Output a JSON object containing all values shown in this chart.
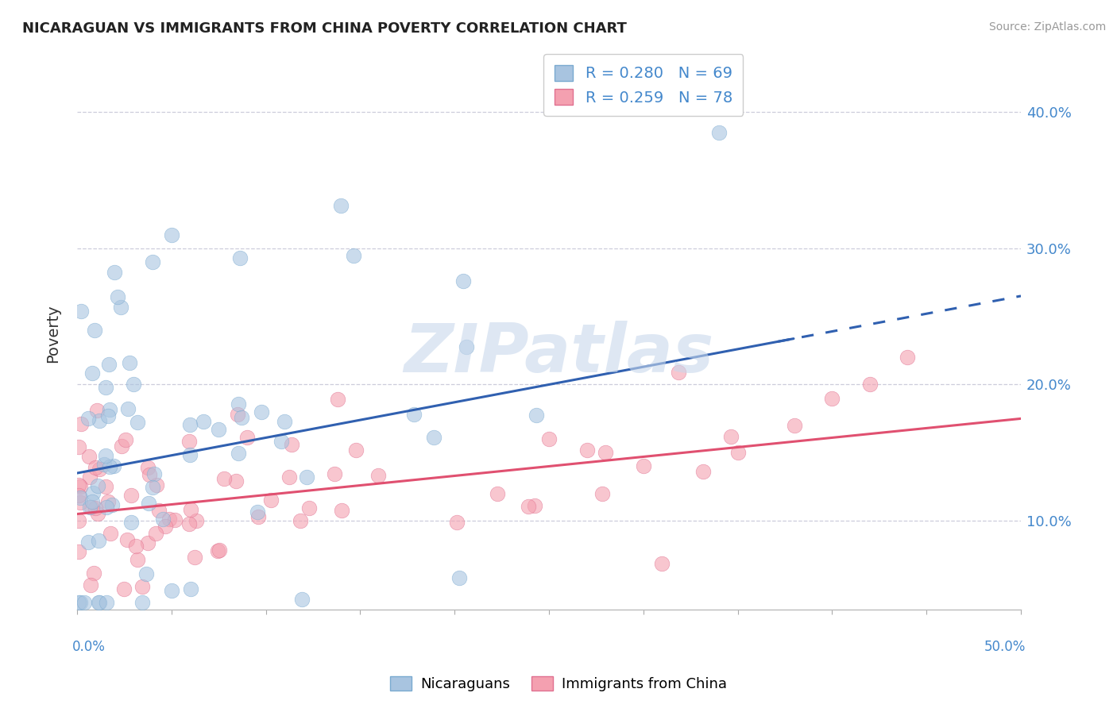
{
  "title": "NICARAGUAN VS IMMIGRANTS FROM CHINA POVERTY CORRELATION CHART",
  "source": "Source: ZipAtlas.com",
  "ylabel": "Poverty",
  "legend1_label": "R = 0.280   N = 69",
  "legend2_label": "R = 0.259   N = 78",
  "legend_bottom1": "Nicaraguans",
  "legend_bottom2": "Immigrants from China",
  "blue_color": "#A8C4E0",
  "pink_color": "#F4A0B0",
  "blue_line_color": "#3060B0",
  "pink_line_color": "#E05070",
  "blue_edge_color": "#7AAAD0",
  "pink_edge_color": "#E07090",
  "y_ticks": [
    0.1,
    0.2,
    0.3,
    0.4
  ],
  "y_tick_labels": [
    "10.0%",
    "20.0%",
    "30.0%",
    "40.0%"
  ],
  "x_range": [
    0.0,
    0.5
  ],
  "y_range": [
    0.035,
    0.44
  ],
  "blue_R": 0.28,
  "blue_N": 69,
  "pink_R": 0.259,
  "pink_N": 78,
  "watermark": "ZIPatlas",
  "watermark_color": "#C8D8EC",
  "grid_color": "#C8C8D8",
  "background_color": "#FFFFFF"
}
